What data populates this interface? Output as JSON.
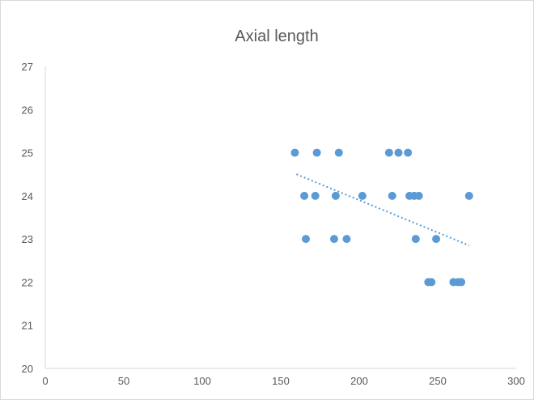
{
  "chart_data": {
    "type": "scatter",
    "title": "Axial length",
    "xlim": [
      0,
      300
    ],
    "ylim": [
      20,
      27
    ],
    "x_ticks": [
      "0",
      "50",
      "100",
      "150",
      "200",
      "250",
      "300"
    ],
    "y_ticks": [
      "20",
      "21",
      "22",
      "23",
      "24",
      "25",
      "26",
      "27"
    ],
    "grid": false,
    "marker_color": "#5b9bd5",
    "trendline": {
      "type": "linear",
      "style": "dotted",
      "color": "#5b9bd5",
      "x": [
        160,
        270
      ],
      "y": [
        24.5,
        22.85
      ]
    },
    "points": [
      {
        "x": 159,
        "y": 25
      },
      {
        "x": 173,
        "y": 25
      },
      {
        "x": 187,
        "y": 25
      },
      {
        "x": 219,
        "y": 25
      },
      {
        "x": 225,
        "y": 25
      },
      {
        "x": 231,
        "y": 25
      },
      {
        "x": 165,
        "y": 24
      },
      {
        "x": 172,
        "y": 24
      },
      {
        "x": 185,
        "y": 24
      },
      {
        "x": 202,
        "y": 24
      },
      {
        "x": 221,
        "y": 24
      },
      {
        "x": 232,
        "y": 24
      },
      {
        "x": 235,
        "y": 24
      },
      {
        "x": 238,
        "y": 24
      },
      {
        "x": 270,
        "y": 24
      },
      {
        "x": 166,
        "y": 23
      },
      {
        "x": 184,
        "y": 23
      },
      {
        "x": 192,
        "y": 23
      },
      {
        "x": 236,
        "y": 23
      },
      {
        "x": 249,
        "y": 23
      },
      {
        "x": 244,
        "y": 22
      },
      {
        "x": 246,
        "y": 22
      },
      {
        "x": 260,
        "y": 22
      },
      {
        "x": 263,
        "y": 22
      },
      {
        "x": 265,
        "y": 22
      }
    ]
  }
}
